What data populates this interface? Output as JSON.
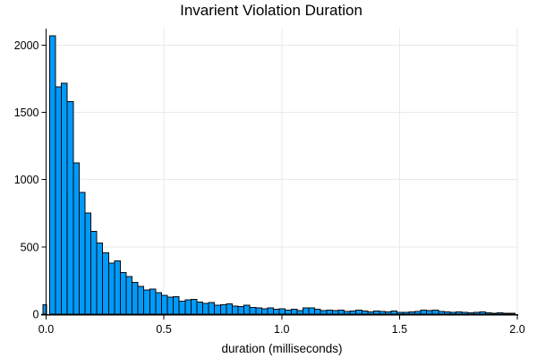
{
  "chart_data": {
    "type": "histogram",
    "title": "Invarient Violation Duration",
    "xlabel": "duration (milliseconds)",
    "ylabel": "",
    "xlim": [
      0.0,
      2.0
    ],
    "ylim": [
      0,
      2120
    ],
    "xticks": [
      0.0,
      0.5,
      1.0,
      1.5,
      2.0
    ],
    "xtick_labels": [
      "0.0",
      "0.5",
      "1.0",
      "1.5",
      "2.0"
    ],
    "yticks": [
      0,
      500,
      1000,
      1500,
      2000
    ],
    "ytick_labels": [
      "0",
      "500",
      "1000",
      "1500",
      "2000"
    ],
    "grid": true,
    "legend": false,
    "bins": {
      "first_left": 0.015,
      "width": 0.025
    },
    "underflow_bar": {
      "left": -0.013,
      "right": 0.0015,
      "count": 70
    },
    "counts": [
      2070,
      1690,
      1715,
      1580,
      1125,
      905,
      750,
      615,
      530,
      455,
      380,
      395,
      310,
      280,
      235,
      205,
      180,
      185,
      160,
      140,
      125,
      130,
      95,
      105,
      110,
      90,
      80,
      85,
      65,
      70,
      75,
      60,
      55,
      65,
      50,
      45,
      40,
      45,
      35,
      40,
      30,
      35,
      25,
      45,
      45,
      35,
      25,
      30,
      25,
      30,
      20,
      22,
      30,
      22,
      18,
      22,
      20,
      18,
      22,
      13,
      13,
      15,
      20,
      30,
      25,
      30,
      20,
      15,
      12,
      15,
      12,
      10,
      12,
      15,
      10,
      8,
      10,
      8,
      8
    ]
  },
  "colors": {
    "background": "#ffffff",
    "bar_fill": "#009AFA",
    "bar_stroke": "#0a0a0a",
    "grid": "#e9e9e9",
    "axis": "#000000",
    "text": "#000000"
  }
}
